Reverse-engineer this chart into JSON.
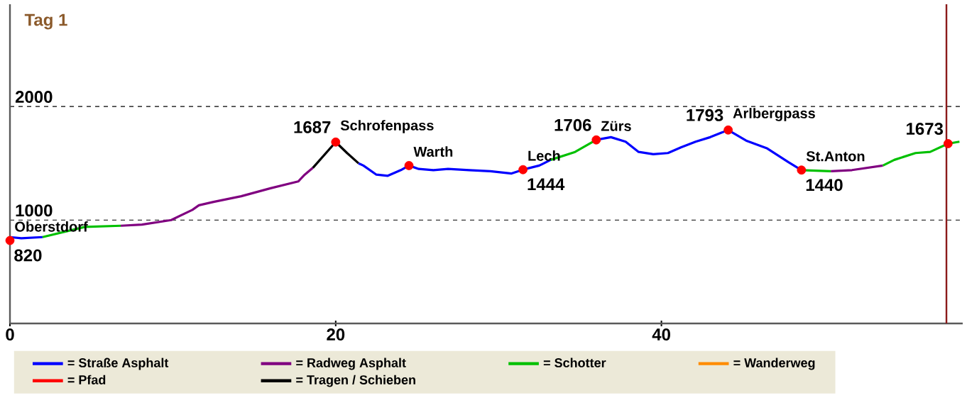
{
  "chart_data": {
    "type": "line",
    "title": "Tag 1",
    "xlim": [
      0,
      58.5
    ],
    "ylim": [
      90,
      2900
    ],
    "xticks": [
      0,
      20,
      40
    ],
    "yticks": [
      1000,
      2000
    ],
    "grid": "y",
    "legend": "bottom",
    "series": [
      {
        "name": "= Straße Asphalt",
        "color": "#0000ff",
        "x": [
          0,
          0.7,
          2.0,
          null,
          21.4,
          21.7,
          22.5,
          23.2,
          24.0,
          24.5,
          25.1,
          26.0,
          26.9,
          28.2,
          29.5,
          30.8,
          31.5,
          32.5,
          33.2,
          null,
          36.0,
          36.9,
          37.8,
          38.6,
          39.5,
          40.4,
          41.2,
          42.1,
          43.0,
          44.1,
          45.2,
          46.5,
          47.8,
          48.6
        ],
        "values": [
          850,
          840,
          850,
          null,
          1500,
          1480,
          1400,
          1390,
          1440,
          1480,
          1450,
          1440,
          1450,
          1440,
          1430,
          1410,
          1444,
          1480,
          1530,
          null,
          1706,
          1730,
          1690,
          1600,
          1580,
          1590,
          1640,
          1690,
          1730,
          1793,
          1700,
          1630,
          1510,
          1440
        ]
      },
      {
        "name": "= Radweg Asphalt",
        "color": "#800080",
        "x": [
          6.8,
          8.1,
          9.9,
          11.2,
          11.6,
          12.5,
          14.2,
          16.0,
          17.7,
          18.1,
          18.6,
          null,
          50.4,
          51.7,
          53.6
        ],
        "values": [
          950,
          960,
          1000,
          1090,
          1130,
          1160,
          1210,
          1280,
          1340,
          1400,
          1460,
          null,
          1430,
          1440,
          1480
        ]
      },
      {
        "name": "= Schotter",
        "color": "#00c000",
        "x": [
          2.0,
          4.6,
          6.8,
          null,
          33.2,
          34.7,
          36.0,
          null,
          48.6,
          50.4,
          null,
          53.6,
          54.3,
          55.6,
          56.5,
          57.6,
          58.3
        ],
        "values": [
          850,
          940,
          950,
          null,
          1530,
          1600,
          1706,
          null,
          1440,
          1430,
          null,
          1480,
          1530,
          1590,
          1600,
          1673,
          1690
        ]
      },
      {
        "name": "= Wanderweg",
        "color": "#ff8c00"
      },
      {
        "name": "= Pfad",
        "color": "#ff0000"
      },
      {
        "name": "= Tragen / Schieben",
        "color": "#000000",
        "x": [
          18.6,
          20.0,
          20.7,
          21.4
        ],
        "values": [
          1460,
          1687,
          1590,
          1500
        ]
      },
      {
        "type": "scatter",
        "color": "#ff0000",
        "x": [
          0,
          20.0,
          24.5,
          31.5,
          36.0,
          44.1,
          48.6,
          57.6
        ],
        "values": [
          820,
          1687,
          1480,
          1444,
          1706,
          1793,
          1440,
          1673
        ],
        "value_labels": [
          "820",
          "1687",
          null,
          "1444",
          "1706",
          "1793",
          "1440",
          "1673"
        ]
      }
    ],
    "ref_lines": [
      {
        "axis": "x",
        "value": 57.5,
        "color": "#8b1a1a"
      }
    ],
    "annotations": [
      {
        "text": "Oberstdorf",
        "x": 0,
        "y": 820
      },
      {
        "text": "Schrofenpass",
        "x": 20.0,
        "y": 1687
      },
      {
        "text": "Warth",
        "x": 24.5,
        "y": 1480
      },
      {
        "text": "Lech",
        "x": 31.5,
        "y": 1444
      },
      {
        "text": "Zürs",
        "x": 36.0,
        "y": 1706
      },
      {
        "text": "Arlbergpass",
        "x": 44.1,
        "y": 1793
      },
      {
        "text": "St.Anton",
        "x": 48.6,
        "y": 1440
      }
    ]
  }
}
